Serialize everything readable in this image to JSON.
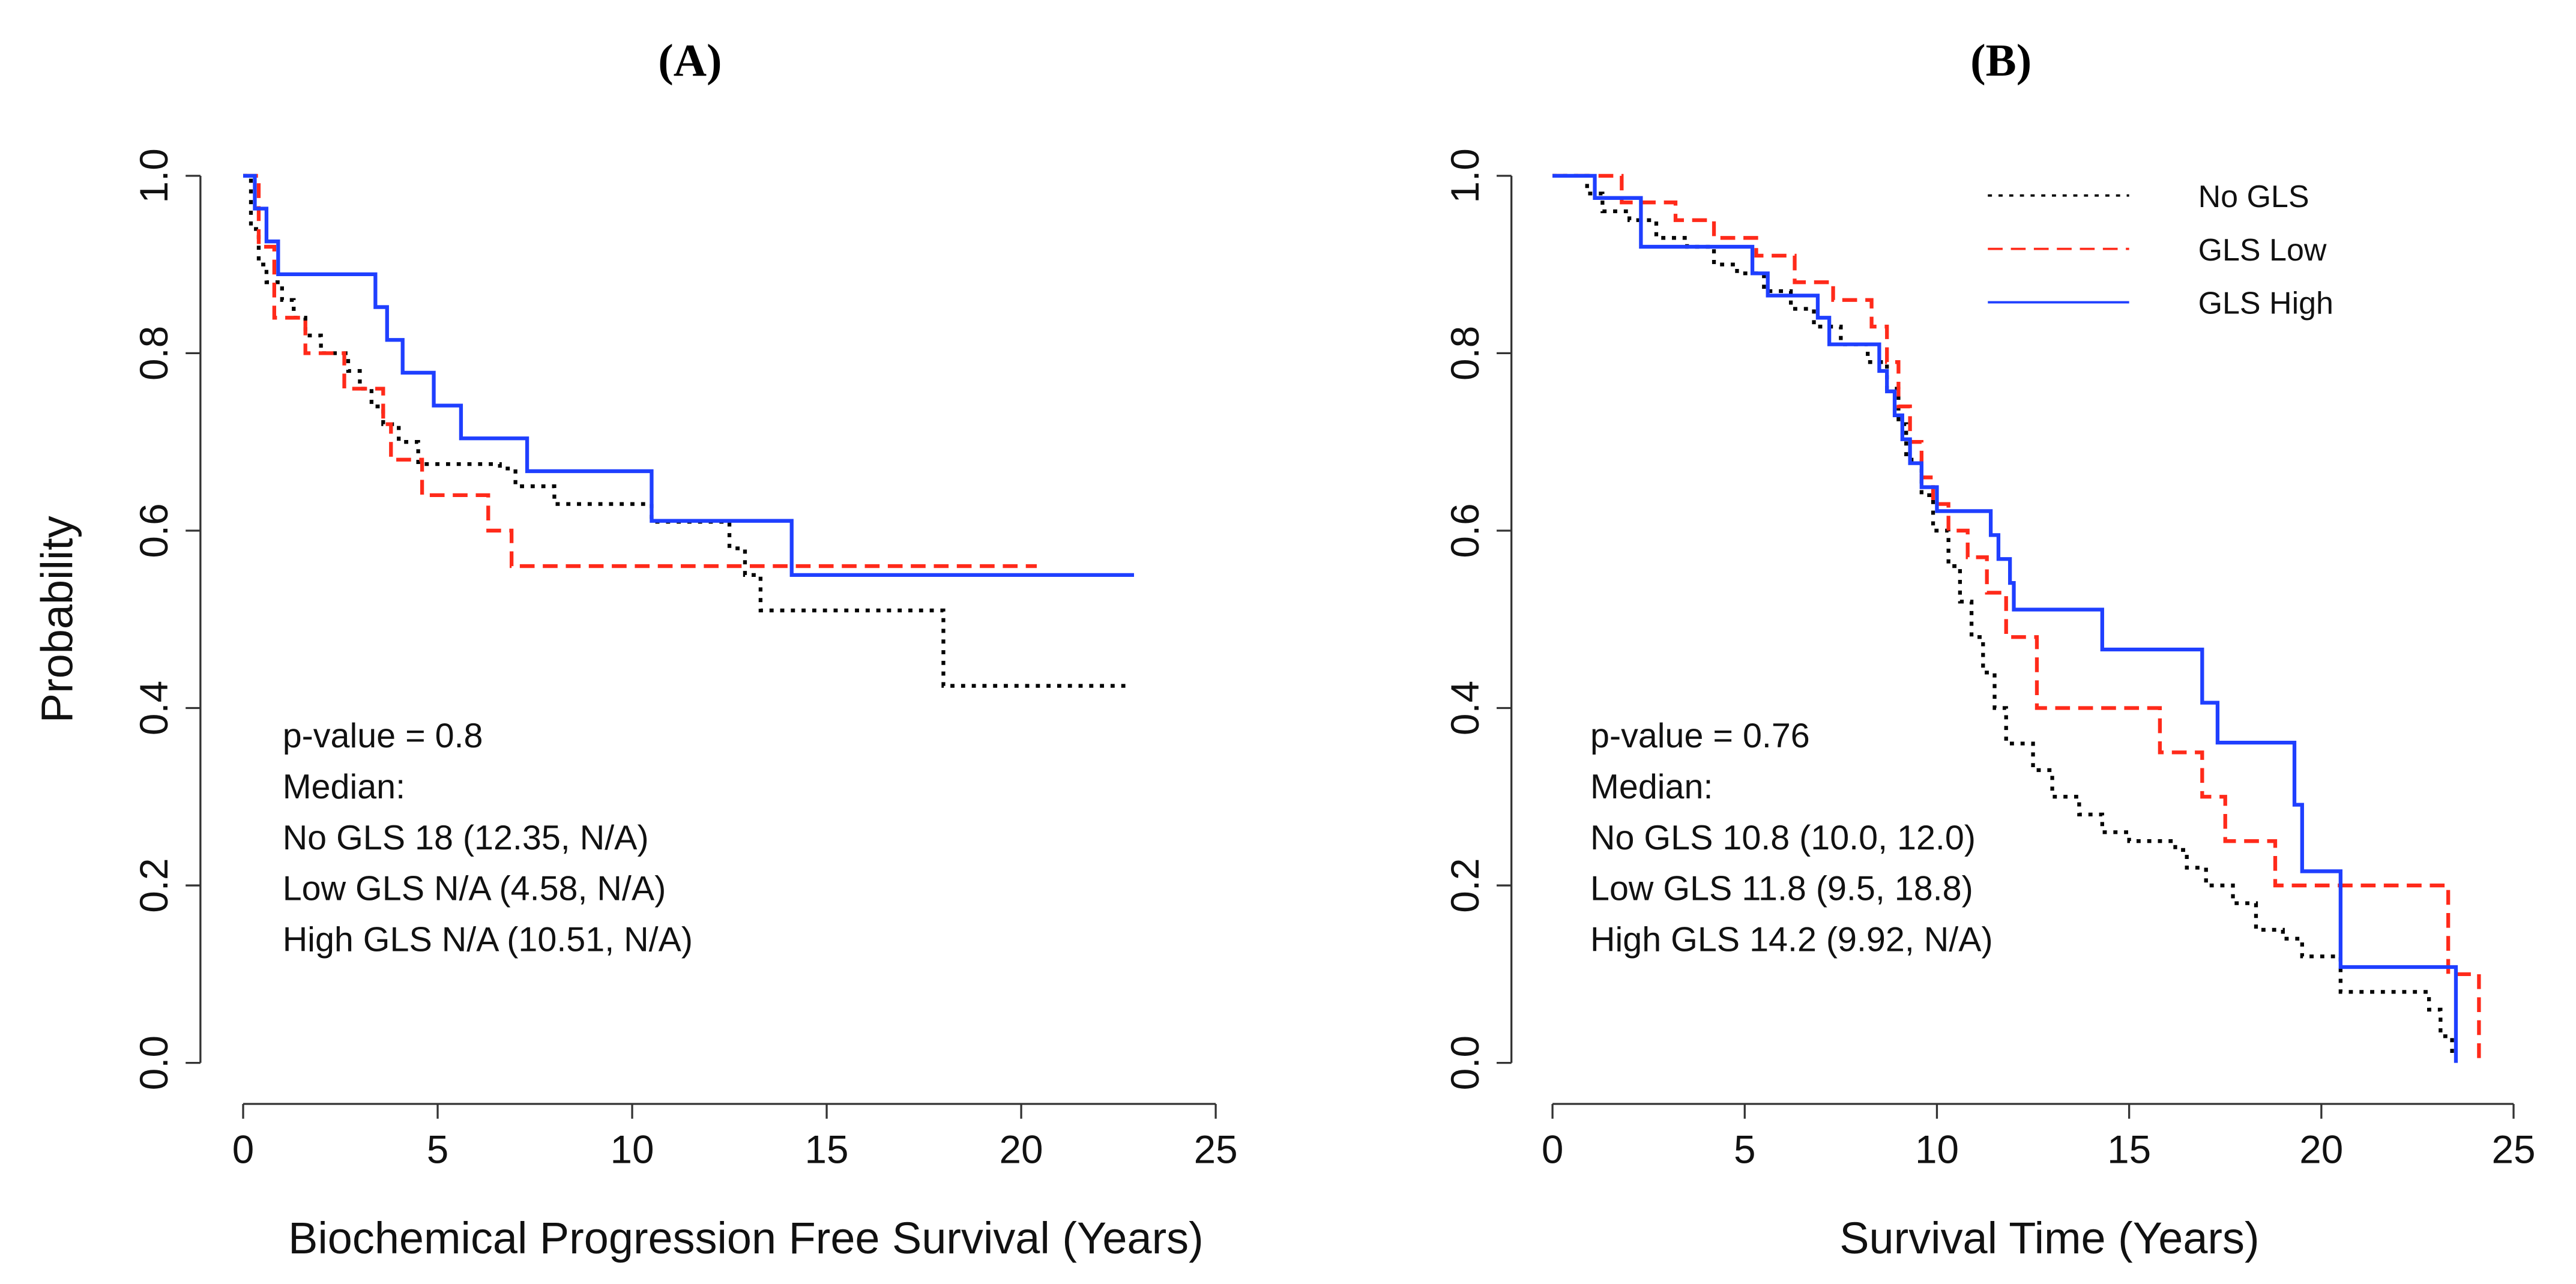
{
  "chart_data": [
    {
      "type": "step",
      "title": "(A)",
      "x_label": "Biochemical Progression Free Survival (Years)",
      "y_label": "Probability",
      "xlim": [
        0,
        25
      ],
      "ylim": [
        0,
        1
      ],
      "xticks": [
        0,
        5,
        10,
        15,
        20,
        25
      ],
      "yticks": [
        {
          "value": 0,
          "label": "0.0"
        },
        0.2,
        0.4,
        0.6,
        0.8,
        {
          "value": 1,
          "label": "1.0"
        }
      ],
      "annotations": [
        "p-value = 0.8",
        "Median:",
        "No GLS 18 (12.35, N/A)",
        "Low GLS N/A (4.58, N/A)",
        "High GLS N/A (10.51, N/A)"
      ],
      "series": [
        {
          "color": "#000000",
          "linestyle": "dotted",
          "x": [
            0,
            0.2,
            0.4,
            0.6,
            1.0,
            1.3,
            1.6,
            2.0,
            2.7,
            3.0,
            3.3,
            3.6,
            4.0,
            4.5,
            6.6,
            7.0,
            8.0,
            10.5,
            12.5,
            12.9,
            13.3,
            18.0,
            22.7
          ],
          "values": [
            1,
            0.94,
            0.9,
            0.88,
            0.86,
            0.84,
            0.82,
            0.8,
            0.78,
            0.76,
            0.74,
            0.72,
            0.7,
            0.675,
            0.67,
            0.65,
            0.63,
            0.61,
            0.58,
            0.55,
            0.51,
            0.425,
            0.425
          ]
        },
        {
          "color": "#ff2a1a",
          "linestyle": "dashed",
          "x": [
            0,
            0.4,
            0.8,
            1.6,
            2.6,
            3.6,
            3.8,
            4.6,
            6.3,
            6.9,
            20.4
          ],
          "values": [
            1,
            0.92,
            0.84,
            0.8,
            0.76,
            0.72,
            0.68,
            0.64,
            0.6,
            0.56,
            0.56
          ]
        },
        {
          "color": "#1f3fff",
          "linestyle": "solid",
          "x": [
            0,
            0.3,
            0.6,
            0.9,
            3.4,
            3.7,
            4.1,
            4.9,
            5.6,
            7.3,
            10.5,
            14.1,
            22.9
          ],
          "values": [
            1,
            0.963,
            0.926,
            0.889,
            0.852,
            0.815,
            0.778,
            0.741,
            0.704,
            0.667,
            0.611,
            0.55,
            0.55
          ]
        }
      ]
    },
    {
      "type": "step",
      "title": "(B)",
      "x_label": "Survival Time (Years)",
      "xlim": [
        0,
        25
      ],
      "ylim": [
        0,
        1
      ],
      "xticks": [
        0,
        5,
        10,
        15,
        20,
        25
      ],
      "yticks": [
        {
          "value": 0,
          "label": "0.0"
        },
        0.2,
        0.4,
        0.6,
        0.8,
        {
          "value": 1,
          "label": "1.0"
        }
      ],
      "legend": "top right",
      "annotations": [
        "p-value = 0.76",
        "Median:",
        "No GLS 10.8 (10.0, 12.0)",
        "Low GLS 11.8 (9.5, 18.8)",
        "High GLS 14.2 (9.92, N/A)"
      ],
      "series": [
        {
          "name": "No GLS",
          "color": "#000000",
          "linestyle": "dotted",
          "x": [
            0,
            0.9,
            1.3,
            2.0,
            2.7,
            3.5,
            4.2,
            4.8,
            5.5,
            6.2,
            6.8,
            7.5,
            8.2,
            8.7,
            9.0,
            9.2,
            9.6,
            9.9,
            10.3,
            10.6,
            10.9,
            11.2,
            11.5,
            11.8,
            12.5,
            13.0,
            13.7,
            14.3,
            15.0,
            16.2,
            16.5,
            17.0,
            17.7,
            18.3,
            19.0,
            19.5,
            20.5,
            22.8,
            23.1,
            23.4,
            23.5
          ],
          "values": [
            1,
            0.98,
            0.96,
            0.95,
            0.93,
            0.92,
            0.9,
            0.89,
            0.87,
            0.85,
            0.83,
            0.81,
            0.79,
            0.76,
            0.72,
            0.68,
            0.64,
            0.6,
            0.56,
            0.52,
            0.48,
            0.44,
            0.4,
            0.36,
            0.33,
            0.3,
            0.28,
            0.26,
            0.25,
            0.24,
            0.22,
            0.2,
            0.18,
            0.15,
            0.14,
            0.12,
            0.08,
            0.06,
            0.03,
            0.01,
            0.01
          ]
        },
        {
          "name": "GLS Low",
          "color": "#ff2a1a",
          "linestyle": "dashed",
          "x": [
            0,
            1.8,
            3.2,
            4.2,
            5.3,
            6.3,
            7.3,
            8.3,
            8.7,
            9.0,
            9.3,
            9.6,
            9.9,
            10.3,
            10.8,
            11.3,
            11.8,
            12.6,
            15.8,
            16.9,
            17.5,
            18.8,
            23.3,
            24.1
          ],
          "values": [
            1,
            0.97,
            0.95,
            0.93,
            0.91,
            0.88,
            0.86,
            0.83,
            0.79,
            0.74,
            0.7,
            0.66,
            0.63,
            0.6,
            0.57,
            0.53,
            0.48,
            0.4,
            0.35,
            0.3,
            0.25,
            0.2,
            0.1,
            0
          ]
        },
        {
          "name": "GLS High",
          "color": "#1f3fff",
          "linestyle": "solid",
          "x": [
            0,
            1.1,
            2.3,
            5.2,
            5.6,
            6.9,
            7.2,
            8.5,
            8.7,
            8.9,
            9.1,
            9.3,
            9.6,
            10.0,
            11.4,
            11.6,
            11.9,
            12.0,
            14.3,
            16.9,
            17.3,
            19.3,
            19.5,
            20.5,
            23.5
          ],
          "values": [
            1,
            0.975,
            0.92,
            0.89,
            0.865,
            0.84,
            0.81,
            0.78,
            0.757,
            0.73,
            0.703,
            0.676,
            0.649,
            0.622,
            0.595,
            0.568,
            0.541,
            0.511,
            0.466,
            0.406,
            0.361,
            0.291,
            0.216,
            0.108,
            0
          ]
        }
      ]
    }
  ]
}
